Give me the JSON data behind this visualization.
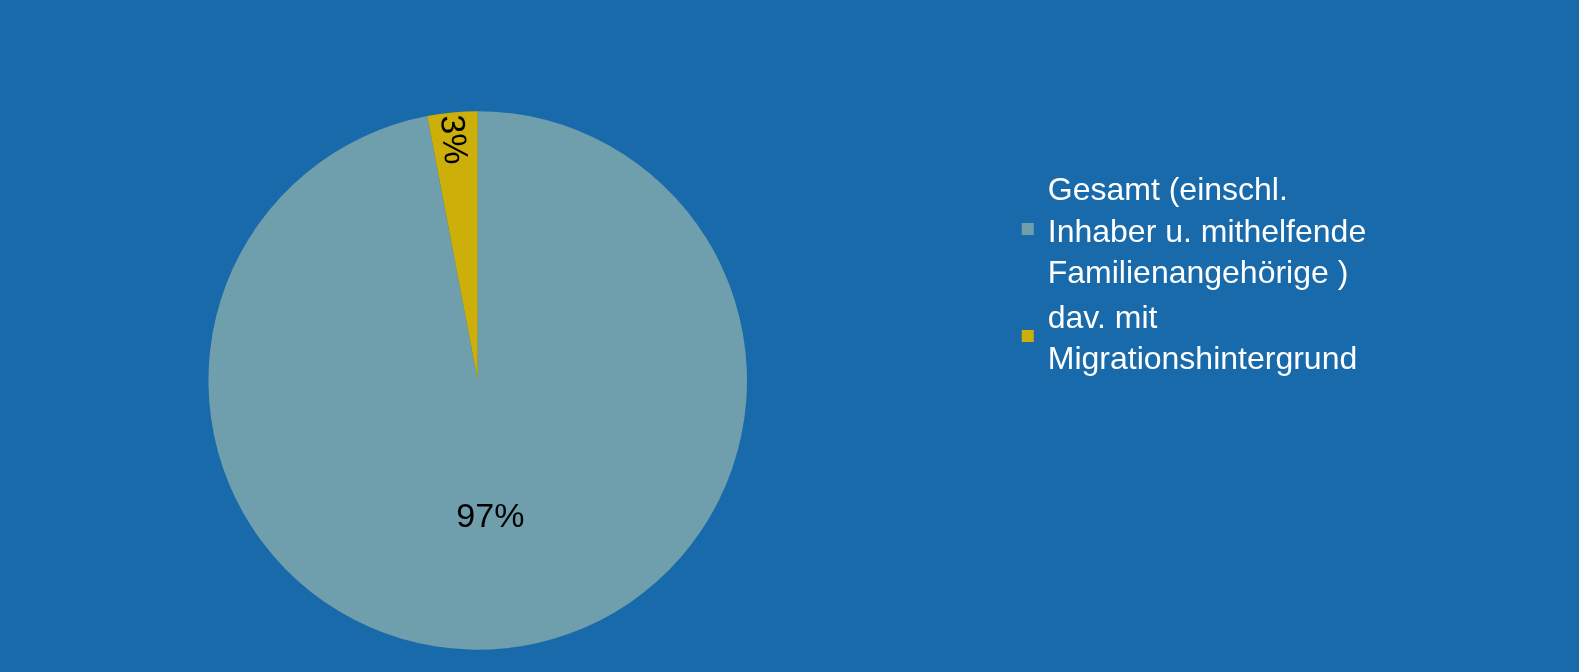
{
  "chart_data": {
    "type": "pie",
    "categories": [
      "Gesamt (einschl. Inhaber u. mithelfende Familienangehörige )",
      "dav. mit Migrationshintergrund"
    ],
    "values": [
      97,
      3
    ],
    "colors": [
      "#6f9fad",
      "#cdaf0a"
    ],
    "value_labels": [
      "97%",
      "3%"
    ],
    "legend": "right"
  }
}
